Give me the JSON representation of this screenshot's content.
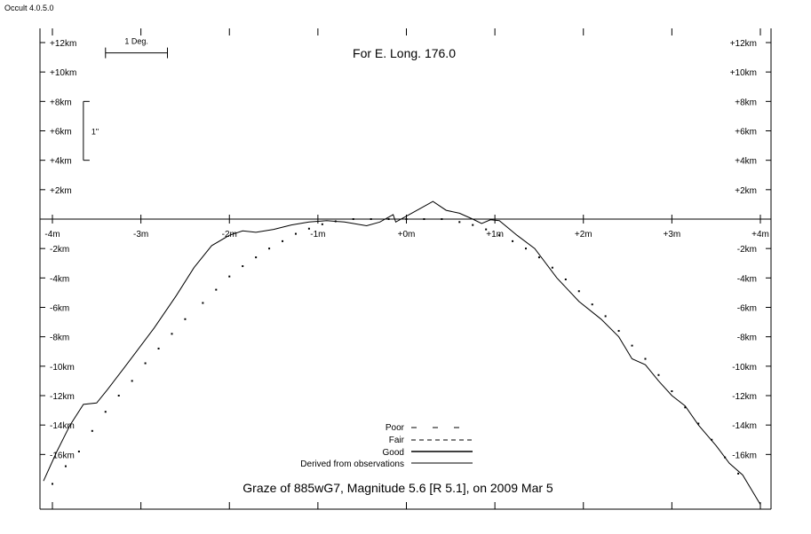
{
  "app": {
    "version_label": "Occult 4.0.5.0"
  },
  "chart_data": {
    "type": "line",
    "title": "For E. Long. 176.0",
    "caption": "Graze of  885wG7,  Magnitude 5.6 [R 5.1],  on 2009 Mar  5",
    "x_unit": "m",
    "y_unit": "km",
    "xlim": [
      -4,
      4
    ],
    "ylim": [
      -19.5,
      13
    ],
    "x_ticks": [
      {
        "value": -4,
        "label": "-4m"
      },
      {
        "value": -3,
        "label": "-3m"
      },
      {
        "value": -2,
        "label": "-2m"
      },
      {
        "value": -1,
        "label": "-1m"
      },
      {
        "value": 0,
        "label": "+0m"
      },
      {
        "value": 1,
        "label": "+1m"
      },
      {
        "value": 2,
        "label": "+2m"
      },
      {
        "value": 3,
        "label": "+3m"
      },
      {
        "value": 4,
        "label": "+4m"
      }
    ],
    "y_ticks": [
      {
        "value": 12,
        "label": "+12km"
      },
      {
        "value": 10,
        "label": "+10km"
      },
      {
        "value": 8,
        "label": "+8km"
      },
      {
        "value": 6,
        "label": "+6km"
      },
      {
        "value": 4,
        "label": "+4km"
      },
      {
        "value": 2,
        "label": "+2km"
      },
      {
        "value": -2,
        "label": "-2km"
      },
      {
        "value": -4,
        "label": "-4km"
      },
      {
        "value": -6,
        "label": "-6km"
      },
      {
        "value": -8,
        "label": "-8km"
      },
      {
        "value": -10,
        "label": "-10km"
      },
      {
        "value": -12,
        "label": "-12km"
      },
      {
        "value": -14,
        "label": "-14km"
      },
      {
        "value": -16,
        "label": "-16km"
      }
    ],
    "scale_bars": {
      "degree": {
        "label": "1 Deg.",
        "x_from": -3.4,
        "x_to": -2.7,
        "y": 11.3
      },
      "arcsec": {
        "label": "1\"",
        "y_from": 8,
        "y_to": 4,
        "x": -3.65
      }
    },
    "legend": {
      "placement": "bottom-center",
      "entries": [
        {
          "label": "Poor",
          "style": "sparse-dash"
        },
        {
          "label": "Fair",
          "style": "dash"
        },
        {
          "label": "Good",
          "style": "solid"
        },
        {
          "label": "Derived from observations",
          "style": "thin-solid"
        }
      ]
    },
    "series": [
      {
        "style": "solid",
        "points": [
          [
            -4.1,
            -17.8
          ],
          [
            -3.95,
            -15.8
          ],
          [
            -3.8,
            -14.0
          ],
          [
            -3.65,
            -12.6
          ],
          [
            -3.5,
            -12.5
          ],
          [
            -3.38,
            -11.6
          ],
          [
            -3.2,
            -10.2
          ],
          [
            -3.05,
            -9.0
          ],
          [
            -2.85,
            -7.4
          ],
          [
            -2.6,
            -5.2
          ],
          [
            -2.4,
            -3.3
          ],
          [
            -2.2,
            -1.8
          ],
          [
            -2.0,
            -1.1
          ],
          [
            -1.85,
            -0.8
          ],
          [
            -1.7,
            -0.9
          ],
          [
            -1.5,
            -0.7
          ],
          [
            -1.3,
            -0.4
          ],
          [
            -1.1,
            -0.2
          ],
          [
            -0.9,
            -0.1
          ],
          [
            -0.7,
            -0.2
          ],
          [
            -0.45,
            -0.45
          ],
          [
            -0.3,
            -0.2
          ],
          [
            -0.15,
            0.3
          ],
          [
            -0.12,
            -0.2
          ],
          [
            0.0,
            0.2
          ],
          [
            0.15,
            0.7
          ],
          [
            0.3,
            1.2
          ],
          [
            0.45,
            0.6
          ],
          [
            0.6,
            0.4
          ],
          [
            0.75,
            0.0
          ],
          [
            0.85,
            -0.3
          ],
          [
            0.95,
            -0.05
          ],
          [
            1.05,
            -0.1
          ],
          [
            1.25,
            -1.1
          ],
          [
            1.45,
            -2.0
          ],
          [
            1.7,
            -4.0
          ],
          [
            1.95,
            -5.6
          ],
          [
            2.2,
            -6.8
          ],
          [
            2.4,
            -8.0
          ],
          [
            2.55,
            -9.5
          ],
          [
            2.7,
            -9.9
          ],
          [
            2.85,
            -11.0
          ],
          [
            3.0,
            -12.0
          ],
          [
            3.15,
            -12.7
          ],
          [
            3.3,
            -14.0
          ],
          [
            3.5,
            -15.4
          ],
          [
            3.65,
            -16.6
          ],
          [
            3.8,
            -17.4
          ],
          [
            4.0,
            -19.4
          ]
        ]
      },
      {
        "style": "dotted",
        "points": [
          [
            -4.0,
            -18.0
          ],
          [
            -3.85,
            -16.8
          ],
          [
            -3.7,
            -15.8
          ],
          [
            -3.55,
            -14.4
          ],
          [
            -3.4,
            -13.1
          ],
          [
            -3.25,
            -12.0
          ],
          [
            -3.1,
            -11.0
          ],
          [
            -2.95,
            -9.8
          ],
          [
            -2.8,
            -8.8
          ],
          [
            -2.65,
            -7.8
          ],
          [
            -2.5,
            -6.8
          ],
          [
            -2.3,
            -5.7
          ],
          [
            -2.15,
            -4.8
          ],
          [
            -2.0,
            -3.9
          ],
          [
            -1.85,
            -3.2
          ],
          [
            -1.7,
            -2.6
          ],
          [
            -1.55,
            -2.0
          ],
          [
            -1.4,
            -1.5
          ],
          [
            -1.25,
            -1.0
          ],
          [
            -1.1,
            -0.65
          ],
          [
            -0.95,
            -0.35
          ],
          [
            -0.8,
            -0.15
          ],
          [
            -0.6,
            0.0
          ],
          [
            -0.4,
            0.0
          ],
          [
            -0.2,
            0.0
          ],
          [
            0.0,
            0.0
          ],
          [
            0.2,
            0.0
          ],
          [
            0.4,
            0.0
          ],
          [
            0.6,
            -0.2
          ],
          [
            0.75,
            -0.4
          ],
          [
            0.9,
            -0.7
          ],
          [
            1.05,
            -1.1
          ],
          [
            1.2,
            -1.5
          ],
          [
            1.35,
            -2.0
          ],
          [
            1.5,
            -2.6
          ],
          [
            1.65,
            -3.3
          ],
          [
            1.8,
            -4.1
          ],
          [
            1.95,
            -4.9
          ],
          [
            2.1,
            -5.8
          ],
          [
            2.25,
            -6.6
          ],
          [
            2.4,
            -7.6
          ],
          [
            2.55,
            -8.6
          ],
          [
            2.7,
            -9.5
          ],
          [
            2.85,
            -10.6
          ],
          [
            3.0,
            -11.7
          ],
          [
            3.15,
            -12.8
          ],
          [
            3.3,
            -13.9
          ],
          [
            3.45,
            -15.0
          ],
          [
            3.6,
            -16.2
          ],
          [
            3.75,
            -17.3
          ]
        ]
      }
    ]
  }
}
